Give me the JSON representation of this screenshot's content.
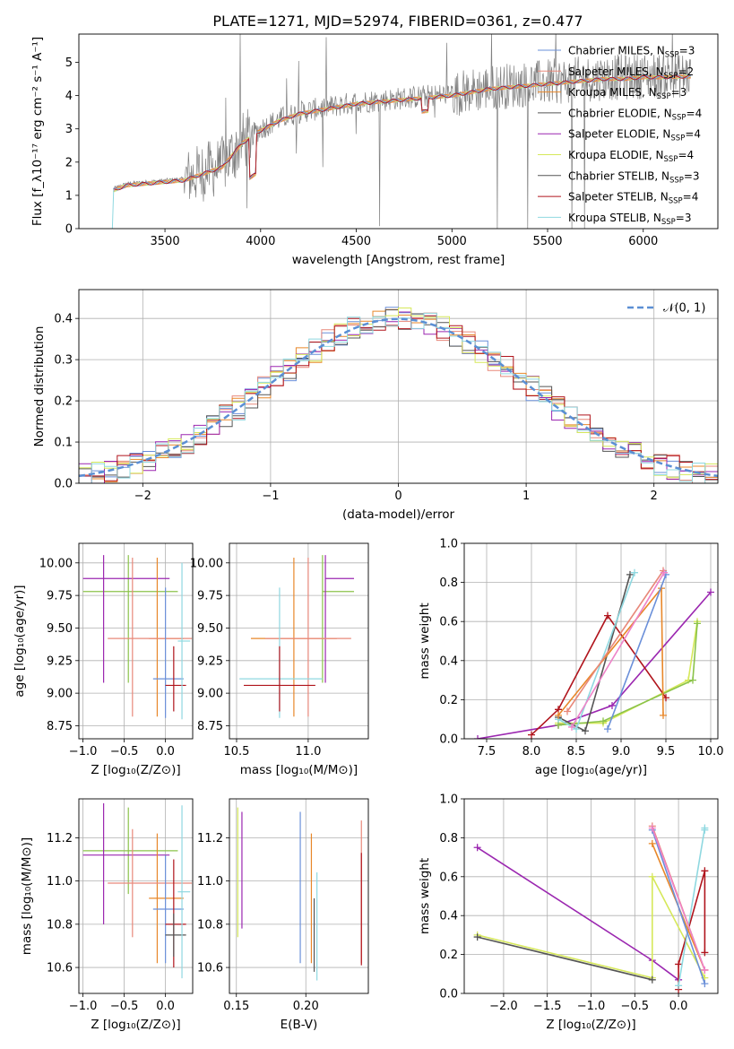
{
  "figure": {
    "title": "PLATE=1271, MJD=52974, FIBERID=0361, z=0.477"
  },
  "colors": {
    "chabrier_miles": "#6a8fd9",
    "salpeter_miles": "#e8887a",
    "kroupa_miles": "#e8872a",
    "chabrier_elodie": "#555555",
    "salpeter_elodie": "#9b27b0",
    "kroupa_elodie": "#d6e85a",
    "chabrier_stelib": "#555555",
    "salpeter_stelib": "#b0141c",
    "kroupa_stelib": "#8fd8e0",
    "extra_green": "#8bc34a",
    "extra_pink": "#ee82c8",
    "extra_teal": "#5fcfc7",
    "normal_curve": "#5b8fd4"
  },
  "chart_data": [
    {
      "id": "spectrum",
      "type": "line",
      "xlabel": "wavelength [Angstrom, rest frame]",
      "ylabel": "Flux [f_λ10⁻¹⁷ erg cm⁻² s⁻¹ A⁻¹]",
      "xlim": [
        3050,
        6390
      ],
      "ylim": [
        0,
        5.85
      ],
      "xticks": [
        3500,
        4000,
        4500,
        5000,
        5500,
        6000
      ],
      "yticks": [
        0,
        1,
        2,
        3,
        4,
        5
      ],
      "legend_position": "top-right",
      "legend": [
        {
          "label": "Chabrier MILES, N",
          "sub": "SSP",
          "tail": "=3",
          "color_key": "chabrier_miles"
        },
        {
          "label": "Salpeter MILES, N",
          "sub": "SSP",
          "tail": "=2",
          "color_key": "salpeter_miles"
        },
        {
          "label": "Kroupa MILES, N",
          "sub": "SSP",
          "tail": "=3",
          "color_key": "kroupa_miles"
        },
        {
          "label": "Chabrier ELODIE, N",
          "sub": "SSP",
          "tail": "=4",
          "color_key": "chabrier_elodie"
        },
        {
          "label": "Salpeter ELODIE, N",
          "sub": "SSP",
          "tail": "=4",
          "color_key": "salpeter_elodie"
        },
        {
          "label": "Kroupa ELODIE, N",
          "sub": "SSP",
          "tail": "=4",
          "color_key": "kroupa_elodie"
        },
        {
          "label": "Chabrier STELIB, N",
          "sub": "SSP",
          "tail": "=3",
          "color_key": "chabrier_stelib"
        },
        {
          "label": "Salpeter STELIB, N",
          "sub": "SSP",
          "tail": "=4",
          "color_key": "salpeter_stelib"
        },
        {
          "label": "Kroupa STELIB, N",
          "sub": "SSP",
          "tail": "=3",
          "color_key": "kroupa_stelib"
        }
      ],
      "continuum": [
        [
          3230,
          1.2
        ],
        [
          3300,
          1.35
        ],
        [
          3400,
          1.4
        ],
        [
          3500,
          1.45
        ],
        [
          3600,
          1.5
        ],
        [
          3700,
          1.7
        ],
        [
          3800,
          1.9
        ],
        [
          3900,
          2.6
        ],
        [
          4000,
          3.0
        ],
        [
          4100,
          3.3
        ],
        [
          4200,
          3.5
        ],
        [
          4300,
          3.6
        ],
        [
          4400,
          3.7
        ],
        [
          4500,
          3.8
        ],
        [
          4600,
          3.85
        ],
        [
          4700,
          3.9
        ],
        [
          4800,
          3.95
        ],
        [
          4900,
          4.0
        ],
        [
          5000,
          4.05
        ],
        [
          5100,
          4.15
        ],
        [
          5200,
          4.25
        ],
        [
          5300,
          4.3
        ],
        [
          5400,
          4.35
        ],
        [
          5500,
          4.4
        ],
        [
          5600,
          4.45
        ],
        [
          5700,
          4.5
        ],
        [
          5800,
          4.55
        ],
        [
          5900,
          4.55
        ],
        [
          6000,
          4.6
        ],
        [
          6100,
          4.6
        ],
        [
          6200,
          4.62
        ]
      ]
    },
    {
      "id": "residuals",
      "type": "line",
      "xlabel": "(data-model)/error",
      "ylabel": "Normed distribution",
      "xlim": [
        -2.5,
        2.5
      ],
      "ylim": [
        0,
        0.47
      ],
      "xticks": [
        -2,
        -1,
        0,
        1,
        2
      ],
      "yticks": [
        0.0,
        0.1,
        0.2,
        0.3,
        0.4
      ],
      "legend_position": "top-right",
      "legend": [
        {
          "label": "𝒩(0, 1)",
          "color_key": "normal_curve",
          "style": "dashed"
        }
      ],
      "grid": true
    },
    {
      "id": "age_vs_Z",
      "type": "scatter",
      "xlabel": "Z [log₁₀(Z/Z⊙)]",
      "ylabel": "age  [log₁₀(age/yr)]",
      "xlim": [
        -1.05,
        0.33
      ],
      "ylim": [
        8.65,
        10.15
      ],
      "xticks": [
        -1.0,
        -0.5,
        0.0
      ],
      "yticks": [
        8.75,
        9.0,
        9.25,
        9.5,
        9.75,
        10.0
      ],
      "points": [
        {
          "x": -0.45,
          "xerr": [
            0.55,
            0.6
          ],
          "y": 9.78,
          "yerr": [
            0.7,
            0.28
          ],
          "color_key": "extra_green"
        },
        {
          "x": -0.75,
          "xerr": [
            0.25,
            0.8
          ],
          "y": 9.88,
          "yerr": [
            0.8,
            0.18
          ],
          "color_key": "salpeter_elodie"
        },
        {
          "x": -0.1,
          "xerr": [
            0.1,
            0.32
          ],
          "y": 9.42,
          "yerr": [
            0.6,
            0.62
          ],
          "color_key": "kroupa_miles"
        },
        {
          "x": -0.4,
          "xerr": [
            0.3,
            0.72
          ],
          "y": 9.42,
          "yerr": [
            0.6,
            0.62
          ],
          "color_key": "salpeter_miles"
        },
        {
          "x": 0.0,
          "xerr": [
            0.15,
            0.22
          ],
          "y": 9.11,
          "yerr": [
            0.3,
            0.7
          ],
          "color_key": "chabrier_miles"
        },
        {
          "x": 0.1,
          "xerr": [
            0.1,
            0.15
          ],
          "y": 9.06,
          "yerr": [
            0.2,
            0.3
          ],
          "color_key": "salpeter_stelib"
        },
        {
          "x": 0.2,
          "xerr": [
            0.05,
            0.1
          ],
          "y": 9.4,
          "yerr": [
            0.6,
            0.6
          ],
          "color_key": "kroupa_stelib"
        }
      ],
      "grid": true
    },
    {
      "id": "age_vs_mass",
      "type": "scatter",
      "xlabel": "mass [log₁₀(M/M⊙)]",
      "ylabel": "",
      "xlim": [
        10.45,
        11.42
      ],
      "ylim": [
        8.65,
        10.15
      ],
      "xticks": [
        10.5,
        11.0
      ],
      "yticks": [
        8.75,
        9.0,
        9.25,
        9.5,
        9.75,
        10.0
      ],
      "points": [
        {
          "x": 11.1,
          "xerr": [
            0.0,
            0.22
          ],
          "y": 9.78,
          "yerr": [
            0.7,
            0.28
          ],
          "color_key": "extra_green"
        },
        {
          "x": 11.12,
          "xerr": [
            0.0,
            0.2
          ],
          "y": 9.88,
          "yerr": [
            0.8,
            0.18
          ],
          "color_key": "salpeter_elodie"
        },
        {
          "x": 10.9,
          "xerr": [
            0.3,
            0.3
          ],
          "y": 9.42,
          "yerr": [
            0.6,
            0.62
          ],
          "color_key": "kroupa_miles"
        },
        {
          "x": 11.0,
          "xerr": [
            0.3,
            0.3
          ],
          "y": 9.42,
          "yerr": [
            0.6,
            0.62
          ],
          "color_key": "salpeter_miles"
        },
        {
          "x": 10.8,
          "xerr": [
            0.28,
            0.3
          ],
          "y": 9.11,
          "yerr": [
            0.3,
            0.7
          ],
          "color_key": "kroupa_stelib"
        },
        {
          "x": 10.8,
          "xerr": [
            0.25,
            0.25
          ],
          "y": 9.06,
          "yerr": [
            0.2,
            0.3
          ],
          "color_key": "salpeter_stelib"
        }
      ],
      "grid": true
    },
    {
      "id": "weight_vs_age",
      "type": "line",
      "xlabel": "age  [log₁₀(age/yr)]",
      "ylabel": "mass weight",
      "xlim": [
        7.25,
        10.08
      ],
      "ylim": [
        0,
        1.0
      ],
      "xticks": [
        7.5,
        8.0,
        8.5,
        9.0,
        9.5,
        10.0
      ],
      "yticks": [
        0.0,
        0.2,
        0.4,
        0.6,
        0.8,
        1.0
      ],
      "series": [
        {
          "color_key": "salpeter_elodie",
          "x": [
            7.4,
            8.3,
            8.9,
            10.0
          ],
          "y": [
            0.0,
            0.07,
            0.17,
            0.75
          ]
        },
        {
          "color_key": "kroupa_elodie",
          "x": [
            8.3,
            8.8,
            9.75,
            9.85
          ],
          "y": [
            0.08,
            0.08,
            0.3,
            0.6
          ]
        },
        {
          "color_key": "extra_green",
          "x": [
            8.3,
            8.8,
            9.8,
            9.85
          ],
          "y": [
            0.07,
            0.09,
            0.3,
            0.59
          ]
        },
        {
          "color_key": "salpeter_stelib",
          "x": [
            8.0,
            8.3,
            8.85,
            9.5
          ],
          "y": [
            0.02,
            0.15,
            0.63,
            0.21
          ]
        },
        {
          "color_key": "chabrier_elodie",
          "x": [
            8.3,
            8.6,
            9.1
          ],
          "y": [
            0.11,
            0.04,
            0.84
          ]
        },
        {
          "color_key": "kroupa_stelib",
          "x": [
            8.3,
            8.5,
            9.15
          ],
          "y": [
            0.1,
            0.05,
            0.85
          ]
        },
        {
          "color_key": "kroupa_miles",
          "x": [
            8.3,
            9.45,
            9.47
          ],
          "y": [
            0.12,
            0.77,
            0.12
          ]
        },
        {
          "color_key": "salpeter_miles",
          "x": [
            8.4,
            9.47
          ],
          "y": [
            0.14,
            0.86
          ]
        },
        {
          "color_key": "chabrier_miles",
          "x": [
            8.85,
            9.5
          ],
          "y": [
            0.05,
            0.84
          ]
        },
        {
          "color_key": "extra_pink",
          "x": [
            8.45,
            9.48
          ],
          "y": [
            0.06,
            0.85
          ]
        }
      ],
      "grid": true
    },
    {
      "id": "mass_vs_Z",
      "type": "scatter",
      "xlabel": "Z [log₁₀(Z/Z⊙)]",
      "ylabel": "mass [log₁₀(M/M⊙)]",
      "xlim": [
        -1.05,
        0.33
      ],
      "ylim": [
        10.48,
        11.38
      ],
      "xticks": [
        -1.0,
        -0.5,
        0.0
      ],
      "yticks": [
        10.6,
        10.8,
        11.0,
        11.2
      ],
      "points": [
        {
          "x": -0.45,
          "xerr": [
            0.55,
            0.6
          ],
          "y": 11.14,
          "yerr": [
            0.2,
            0.2
          ],
          "color_key": "extra_green"
        },
        {
          "x": -0.75,
          "xerr": [
            0.25,
            0.8
          ],
          "y": 11.12,
          "yerr": [
            0.32,
            0.24
          ],
          "color_key": "salpeter_elodie"
        },
        {
          "x": -0.1,
          "xerr": [
            0.1,
            0.32
          ],
          "y": 10.92,
          "yerr": [
            0.3,
            0.3
          ],
          "color_key": "kroupa_miles"
        },
        {
          "x": -0.4,
          "xerr": [
            0.3,
            0.72
          ],
          "y": 10.99,
          "yerr": [
            0.25,
            0.25
          ],
          "color_key": "salpeter_miles"
        },
        {
          "x": 0.0,
          "xerr": [
            0.15,
            0.22
          ],
          "y": 10.87,
          "yerr": [
            0.25,
            0.25
          ],
          "color_key": "chabrier_miles"
        },
        {
          "x": 0.1,
          "xerr": [
            0.1,
            0.15
          ],
          "y": 10.8,
          "yerr": [
            0.2,
            0.3
          ],
          "color_key": "salpeter_stelib"
        },
        {
          "x": 0.1,
          "xerr": [
            0.1,
            0.15
          ],
          "y": 10.75,
          "yerr": [
            0.1,
            0.1
          ],
          "color_key": "chabrier_elodie"
        },
        {
          "x": 0.2,
          "xerr": [
            0.05,
            0.1
          ],
          "y": 10.95,
          "yerr": [
            0.4,
            0.4
          ],
          "color_key": "kroupa_stelib"
        }
      ],
      "grid": true
    },
    {
      "id": "mass_vs_ebv",
      "type": "scatter",
      "xlabel": "E(B-V)",
      "ylabel": "",
      "xlim": [
        0.145,
        0.245
      ],
      "ylim": [
        10.48,
        11.38
      ],
      "xticks": [
        0.15,
        0.2
      ],
      "yticks": [
        10.6,
        10.8,
        11.0,
        11.2
      ],
      "points": [
        {
          "x": 0.151,
          "y": 11.04,
          "yerr": [
            0.3,
            0.3
          ],
          "color_key": "kroupa_elodie"
        },
        {
          "x": 0.154,
          "y": 11.05,
          "yerr": [
            0.27,
            0.27
          ],
          "color_key": "salpeter_elodie"
        },
        {
          "x": 0.196,
          "y": 10.97,
          "yerr": [
            0.35,
            0.35
          ],
          "color_key": "chabrier_miles"
        },
        {
          "x": 0.204,
          "y": 10.92,
          "yerr": [
            0.3,
            0.3
          ],
          "color_key": "kroupa_miles"
        },
        {
          "x": 0.206,
          "y": 10.75,
          "yerr": [
            0.17,
            0.17
          ],
          "color_key": "chabrier_elodie"
        },
        {
          "x": 0.208,
          "y": 10.79,
          "yerr": [
            0.25,
            0.25
          ],
          "color_key": "kroupa_stelib"
        },
        {
          "x": 0.24,
          "y": 10.95,
          "yerr": [
            0.33,
            0.33
          ],
          "color_key": "salpeter_miles"
        },
        {
          "x": 0.24,
          "y": 10.87,
          "yerr": [
            0.26,
            0.26
          ],
          "color_key": "salpeter_stelib"
        }
      ],
      "grid": true
    },
    {
      "id": "weight_vs_Z",
      "type": "line",
      "xlabel": "Z [log₁₀(Z/Z⊙)]",
      "ylabel": "mass weight",
      "xlim": [
        -2.45,
        0.45
      ],
      "ylim": [
        0,
        1.0
      ],
      "xticks": [
        -2.0,
        -1.5,
        -1.0,
        -0.5,
        0.0
      ],
      "yticks": [
        0.0,
        0.2,
        0.4,
        0.6,
        0.8,
        1.0
      ],
      "series": [
        {
          "color_key": "salpeter_elodie",
          "x": [
            -2.3,
            -0.3,
            0.0
          ],
          "y": [
            0.75,
            0.17,
            0.07
          ]
        },
        {
          "color_key": "kroupa_elodie",
          "x": [
            -2.3,
            -0.3,
            -0.3,
            0.3
          ],
          "y": [
            0.3,
            0.08,
            0.6,
            0.08
          ]
        },
        {
          "color_key": "chabrier_elodie",
          "x": [
            -2.3,
            -0.3
          ],
          "y": [
            0.29,
            0.07
          ]
        },
        {
          "color_key": "salpeter_stelib",
          "x": [
            0.0,
            0.0,
            0.3,
            0.3
          ],
          "y": [
            0.02,
            0.15,
            0.63,
            0.21
          ]
        },
        {
          "color_key": "kroupa_stelib",
          "x": [
            0.0,
            0.3,
            0.3
          ],
          "y": [
            0.04,
            0.85,
            0.84
          ]
        },
        {
          "color_key": "kroupa_miles",
          "x": [
            -0.3,
            0.3
          ],
          "y": [
            0.77,
            0.12
          ]
        },
        {
          "color_key": "salpeter_miles",
          "x": [
            -0.3,
            0.3
          ],
          "y": [
            0.86,
            0.12
          ]
        },
        {
          "color_key": "chabrier_miles",
          "x": [
            -0.3,
            0.3
          ],
          "y": [
            0.84,
            0.05
          ]
        },
        {
          "color_key": "extra_pink",
          "x": [
            -0.3,
            0.3
          ],
          "y": [
            0.85,
            0.12
          ]
        }
      ],
      "grid": true
    }
  ]
}
